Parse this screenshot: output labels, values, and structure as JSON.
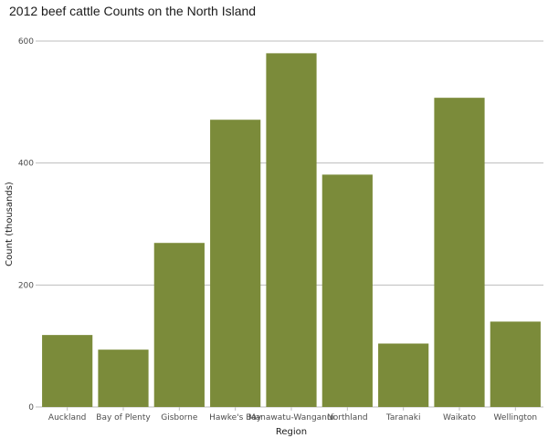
{
  "chart_data": {
    "type": "bar",
    "title": "2012 beef cattle Counts on the North Island",
    "xlabel": "Region",
    "ylabel": "Count (thousands)",
    "categories": [
      "Auckland",
      "Bay of Plenty",
      "Gisborne",
      "Hawke's Bay",
      "Manawatu-Wanganui",
      "Northland",
      "Taranaki",
      "Waikato",
      "Wellington"
    ],
    "values": [
      118,
      94,
      269,
      471,
      580,
      381,
      104,
      507,
      140
    ],
    "ylim": [
      0,
      600
    ],
    "yticks": [
      0,
      200,
      400,
      600
    ],
    "grid": true,
    "bar_color": "#7b8b3a"
  }
}
